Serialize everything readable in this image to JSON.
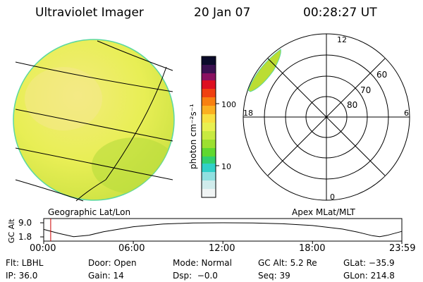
{
  "header": {
    "title": "Ultraviolet Imager",
    "date": "20 Jan 07",
    "time": "00:28:27 UT"
  },
  "colorbar": {
    "label": "photon cm⁻²s⁻¹",
    "ticks": [
      "100",
      "10"
    ]
  },
  "left_panel": {
    "caption": "Geographic Lat/Lon"
  },
  "polar_panel": {
    "caption": "Apex MLat/MLT",
    "mlt_labels": {
      "top": "12",
      "bottom": "0",
      "left": "18",
      "right": "6"
    },
    "lat_labels": [
      "60",
      "70",
      "80"
    ]
  },
  "info": {
    "row1": [
      "Flt: LBHL",
      "Door: Open",
      "Mode: Normal",
      "GC Alt: 5.2 Re",
      "GLat: −35.9"
    ],
    "row2": [
      "IP: 36.0",
      "Gain: 14",
      "Dsp:  −0.0",
      "Seq: 39",
      "GLon: 214.8"
    ]
  },
  "chart_data": {
    "type": "line",
    "ylabel": "GC Alt",
    "y_ticks": [
      "9.0",
      "1.8"
    ],
    "ylim": [
      1.8,
      9.0
    ],
    "x_ticks": [
      "00:00",
      "06:00",
      "12:00",
      "18:00",
      "23:59"
    ],
    "current_time_marker": "00:28",
    "series": [
      {
        "x": [
          "00:00",
          "01:00",
          "02:00",
          "03:00",
          "04:00",
          "06:00",
          "08:00",
          "10:00",
          "12:00",
          "14:00",
          "16:00",
          "18:00",
          "20:00",
          "21:00",
          "22:00",
          "22:30",
          "23:00",
          "23:59"
        ],
        "values": [
          5.6,
          3.6,
          1.9,
          2.6,
          4.4,
          7.0,
          8.4,
          8.9,
          9.0,
          8.9,
          8.5,
          7.6,
          5.8,
          4.3,
          2.4,
          1.9,
          2.6,
          4.6
        ]
      }
    ],
    "colors": {
      "orbit_line": "#000000",
      "time_marker": "#cc0000",
      "disk_fill": "#e8ee55",
      "aurora_fill": "#bbdd33"
    }
  }
}
